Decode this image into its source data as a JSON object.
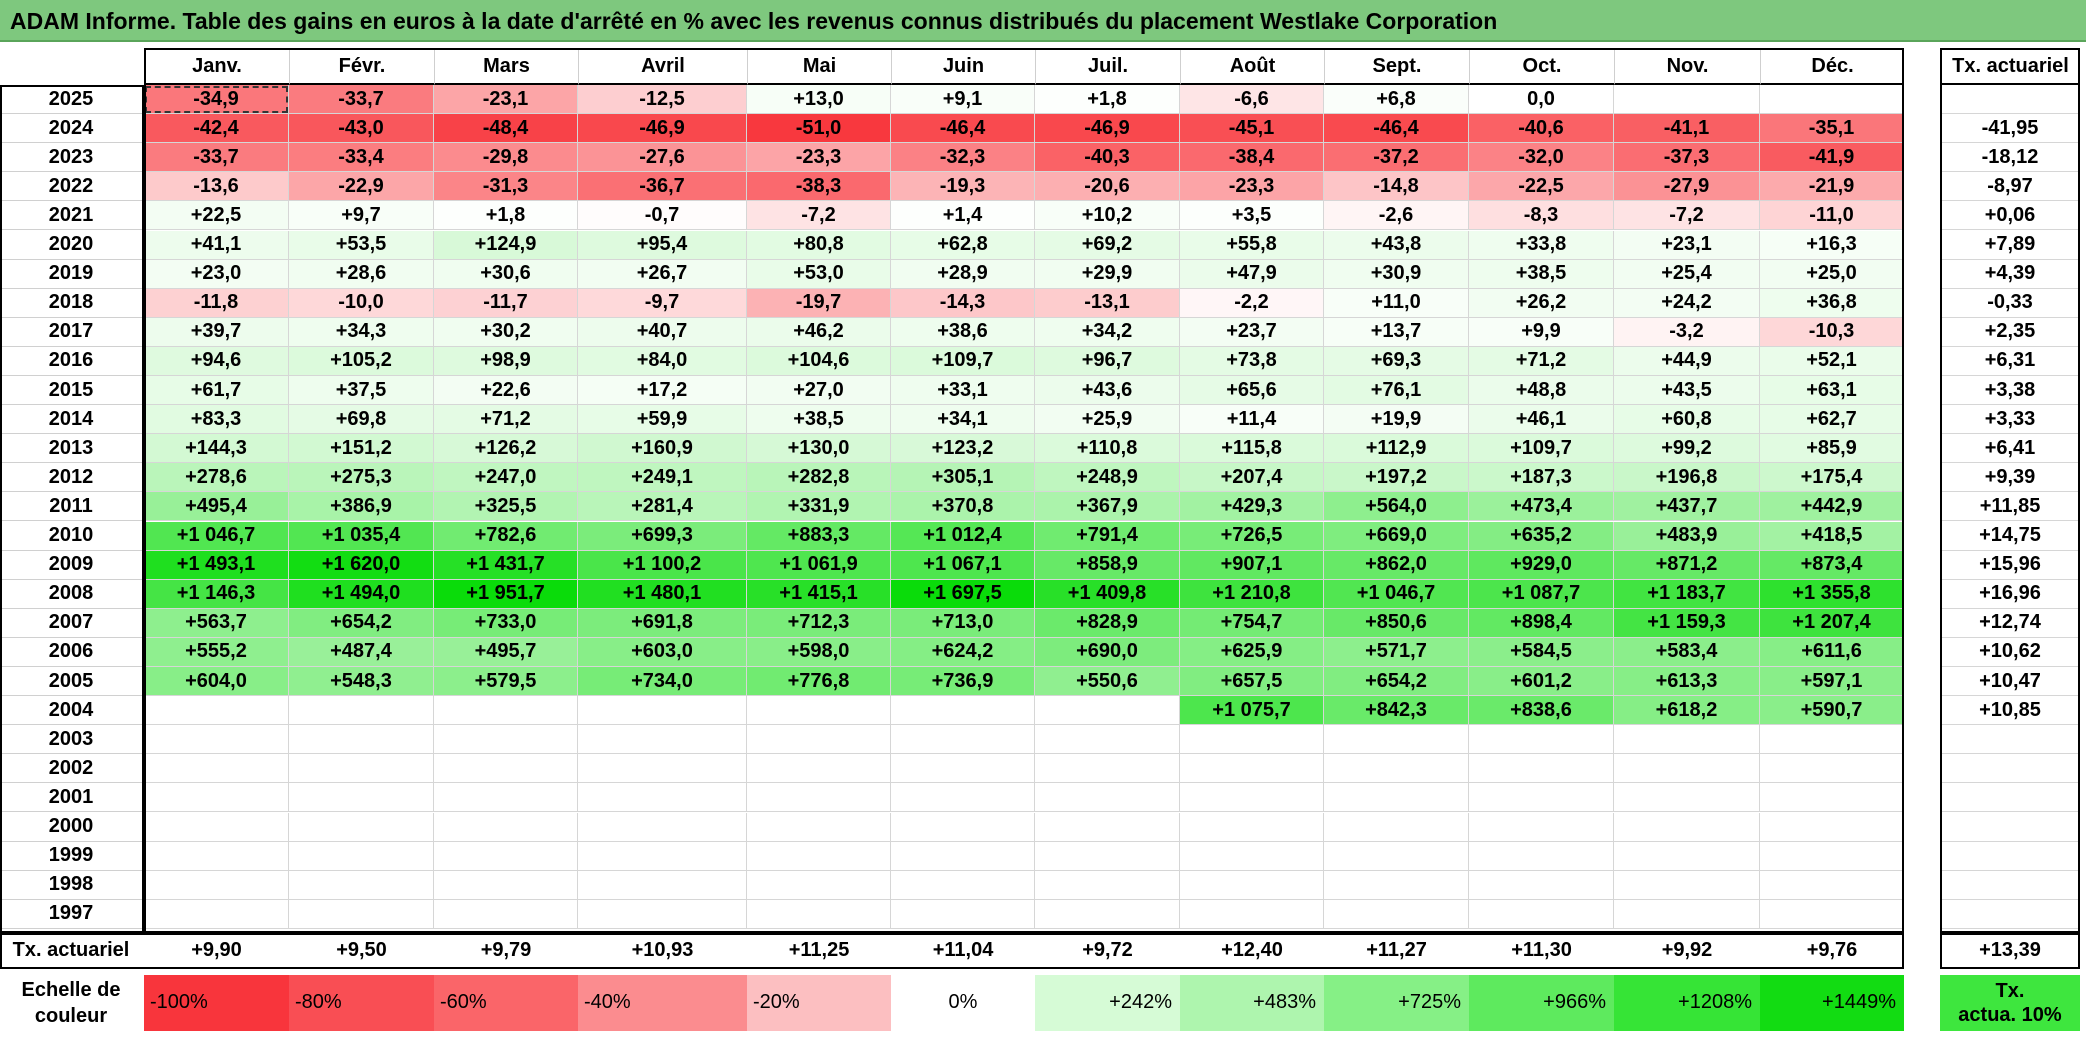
{
  "title": "ADAM Informe. Table des gains en euros à la date d'arrêté en % avec les revenus connus distribués du placement Westlake Corporation",
  "months": [
    "Janv.",
    "Févr.",
    "Mars",
    "Avril",
    "Mai",
    "Juin",
    "Juil.",
    "Août",
    "Sept.",
    "Oct.",
    "Nov.",
    "Déc."
  ],
  "rate_header": "Tx. actuariel",
  "rows": [
    {
      "year": "2025",
      "values": [
        "-34,9",
        "-33,7",
        "-23,1",
        "-12,5",
        "+13,0",
        "+9,1",
        "+1,8",
        "-6,6",
        "+6,8",
        "0,0",
        "",
        ""
      ],
      "rate": ""
    },
    {
      "year": "2024",
      "values": [
        "-42,4",
        "-43,0",
        "-48,4",
        "-46,9",
        "-51,0",
        "-46,4",
        "-46,9",
        "-45,1",
        "-46,4",
        "-40,6",
        "-41,1",
        "-35,1"
      ],
      "rate": "-41,95"
    },
    {
      "year": "2023",
      "values": [
        "-33,7",
        "-33,4",
        "-29,8",
        "-27,6",
        "-23,3",
        "-32,3",
        "-40,3",
        "-38,4",
        "-37,2",
        "-32,0",
        "-37,3",
        "-41,9"
      ],
      "rate": "-18,12"
    },
    {
      "year": "2022",
      "values": [
        "-13,6",
        "-22,9",
        "-31,3",
        "-36,7",
        "-38,3",
        "-19,3",
        "-20,6",
        "-23,3",
        "-14,8",
        "-22,5",
        "-27,9",
        "-21,9"
      ],
      "rate": "-8,97"
    },
    {
      "year": "2021",
      "values": [
        "+22,5",
        "+9,7",
        "+1,8",
        "-0,7",
        "-7,2",
        "+1,4",
        "+10,2",
        "+3,5",
        "-2,6",
        "-8,3",
        "-7,2",
        "-11,0"
      ],
      "rate": "+0,06"
    },
    {
      "year": "2020",
      "values": [
        "+41,1",
        "+53,5",
        "+124,9",
        "+95,4",
        "+80,8",
        "+62,8",
        "+69,2",
        "+55,8",
        "+43,8",
        "+33,8",
        "+23,1",
        "+16,3"
      ],
      "rate": "+7,89"
    },
    {
      "year": "2019",
      "values": [
        "+23,0",
        "+28,6",
        "+30,6",
        "+26,7",
        "+53,0",
        "+28,9",
        "+29,9",
        "+47,9",
        "+30,9",
        "+38,5",
        "+25,4",
        "+25,0"
      ],
      "rate": "+4,39"
    },
    {
      "year": "2018",
      "values": [
        "-11,8",
        "-10,0",
        "-11,7",
        "-9,7",
        "-19,7",
        "-14,3",
        "-13,1",
        "-2,2",
        "+11,0",
        "+26,2",
        "+24,2",
        "+36,8"
      ],
      "rate": "-0,33"
    },
    {
      "year": "2017",
      "values": [
        "+39,7",
        "+34,3",
        "+30,2",
        "+40,7",
        "+46,2",
        "+38,6",
        "+34,2",
        "+23,7",
        "+13,7",
        "+9,9",
        "-3,2",
        "-10,3"
      ],
      "rate": "+2,35"
    },
    {
      "year": "2016",
      "values": [
        "+94,6",
        "+105,2",
        "+98,9",
        "+84,0",
        "+104,6",
        "+109,7",
        "+96,7",
        "+73,8",
        "+69,3",
        "+71,2",
        "+44,9",
        "+52,1"
      ],
      "rate": "+6,31"
    },
    {
      "year": "2015",
      "values": [
        "+61,7",
        "+37,5",
        "+22,6",
        "+17,2",
        "+27,0",
        "+33,1",
        "+43,6",
        "+65,6",
        "+76,1",
        "+48,8",
        "+43,5",
        "+63,1"
      ],
      "rate": "+3,38"
    },
    {
      "year": "2014",
      "values": [
        "+83,3",
        "+69,8",
        "+71,2",
        "+59,9",
        "+38,5",
        "+34,1",
        "+25,9",
        "+11,4",
        "+19,9",
        "+46,1",
        "+60,8",
        "+62,7"
      ],
      "rate": "+3,33"
    },
    {
      "year": "2013",
      "values": [
        "+144,3",
        "+151,2",
        "+126,2",
        "+160,9",
        "+130,0",
        "+123,2",
        "+110,8",
        "+115,8",
        "+112,9",
        "+109,7",
        "+99,2",
        "+85,9"
      ],
      "rate": "+6,41"
    },
    {
      "year": "2012",
      "values": [
        "+278,6",
        "+275,3",
        "+247,0",
        "+249,1",
        "+282,8",
        "+305,1",
        "+248,9",
        "+207,4",
        "+197,2",
        "+187,3",
        "+196,8",
        "+175,4"
      ],
      "rate": "+9,39"
    },
    {
      "year": "2011",
      "values": [
        "+495,4",
        "+386,9",
        "+325,5",
        "+281,4",
        "+331,9",
        "+370,8",
        "+367,9",
        "+429,3",
        "+564,0",
        "+473,4",
        "+437,7",
        "+442,9"
      ],
      "rate": "+11,85"
    },
    {
      "year": "2010",
      "values": [
        "+1 046,7",
        "+1 035,4",
        "+782,6",
        "+699,3",
        "+883,3",
        "+1 012,4",
        "+791,4",
        "+726,5",
        "+669,0",
        "+635,2",
        "+483,9",
        "+418,5"
      ],
      "rate": "+14,75"
    },
    {
      "year": "2009",
      "values": [
        "+1 493,1",
        "+1 620,0",
        "+1 431,7",
        "+1 100,2",
        "+1 061,9",
        "+1 067,1",
        "+858,9",
        "+907,1",
        "+862,0",
        "+929,0",
        "+871,2",
        "+873,4"
      ],
      "rate": "+15,96"
    },
    {
      "year": "2008",
      "values": [
        "+1 146,3",
        "+1 494,0",
        "+1 951,7",
        "+1 480,1",
        "+1 415,1",
        "+1 697,5",
        "+1 409,8",
        "+1 210,8",
        "+1 046,7",
        "+1 087,7",
        "+1 183,7",
        "+1 355,8"
      ],
      "rate": "+16,96"
    },
    {
      "year": "2007",
      "values": [
        "+563,7",
        "+654,2",
        "+733,0",
        "+691,8",
        "+712,3",
        "+713,0",
        "+828,9",
        "+754,7",
        "+850,6",
        "+898,4",
        "+1 159,3",
        "+1 207,4"
      ],
      "rate": "+12,74"
    },
    {
      "year": "2006",
      "values": [
        "+555,2",
        "+487,4",
        "+495,7",
        "+603,0",
        "+598,0",
        "+624,2",
        "+690,0",
        "+625,9",
        "+571,7",
        "+584,5",
        "+583,4",
        "+611,6"
      ],
      "rate": "+10,62"
    },
    {
      "year": "2005",
      "values": [
        "+604,0",
        "+548,3",
        "+579,5",
        "+734,0",
        "+776,8",
        "+736,9",
        "+550,6",
        "+657,5",
        "+654,2",
        "+601,2",
        "+613,3",
        "+597,1"
      ],
      "rate": "+10,47"
    },
    {
      "year": "2004",
      "values": [
        "",
        "",
        "",
        "",
        "",
        "",
        "",
        "+1 075,7",
        "+842,3",
        "+838,6",
        "+618,2",
        "+590,7"
      ],
      "rate": "+10,85"
    },
    {
      "year": "2003",
      "values": [
        "",
        "",
        "",
        "",
        "",
        "",
        "",
        "",
        "",
        "",
        "",
        ""
      ],
      "rate": ""
    },
    {
      "year": "2002",
      "values": [
        "",
        "",
        "",
        "",
        "",
        "",
        "",
        "",
        "",
        "",
        "",
        ""
      ],
      "rate": ""
    },
    {
      "year": "2001",
      "values": [
        "",
        "",
        "",
        "",
        "",
        "",
        "",
        "",
        "",
        "",
        "",
        ""
      ],
      "rate": ""
    },
    {
      "year": "2000",
      "values": [
        "",
        "",
        "",
        "",
        "",
        "",
        "",
        "",
        "",
        "",
        "",
        ""
      ],
      "rate": ""
    },
    {
      "year": "1999",
      "values": [
        "",
        "",
        "",
        "",
        "",
        "",
        "",
        "",
        "",
        "",
        "",
        ""
      ],
      "rate": ""
    },
    {
      "year": "1998",
      "values": [
        "",
        "",
        "",
        "",
        "",
        "",
        "",
        "",
        "",
        "",
        "",
        ""
      ],
      "rate": ""
    },
    {
      "year": "1997",
      "values": [
        "",
        "",
        "",
        "",
        "",
        "",
        "",
        "",
        "",
        "",
        "",
        ""
      ],
      "rate": ""
    }
  ],
  "footer": {
    "label": "Tx. actuariel",
    "values": [
      "+9,90",
      "+9,50",
      "+9,79",
      "+10,93",
      "+11,25",
      "+11,04",
      "+9,72",
      "+12,40",
      "+11,27",
      "+11,30",
      "+9,92",
      "+9,76"
    ],
    "overall": "+13,39"
  },
  "scale": {
    "label_line1": "Echelle de",
    "label_line2": "couleur",
    "steps": [
      {
        "label": "-100%",
        "color": "#f8353c"
      },
      {
        "label": "-80%",
        "color": "#f94e54"
      },
      {
        "label": "-60%",
        "color": "#fa6569"
      },
      {
        "label": "-40%",
        "color": "#fb8c8f"
      },
      {
        "label": "-20%",
        "color": "#fcbfc1"
      },
      {
        "label": "0%",
        "color": "#ffffff"
      },
      {
        "label": "+242%",
        "color": "#d6fbd6"
      },
      {
        "label": "+483%",
        "color": "#aef5ae"
      },
      {
        "label": "+725%",
        "color": "#86f086"
      },
      {
        "label": "+966%",
        "color": "#5eea5e"
      },
      {
        "label": "+1208%",
        "color": "#36e436"
      },
      {
        "label": "+1449%",
        "color": "#12dc12"
      }
    ],
    "last_line1": "Tx.",
    "last_line2": "actua. 10%",
    "last_color": "#3ee63e"
  }
}
